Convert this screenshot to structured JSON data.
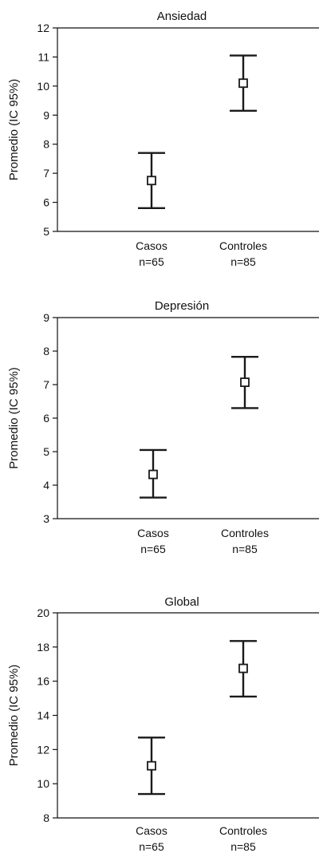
{
  "chart_data": [
    {
      "type": "errorbar",
      "title": "Ansiedad",
      "ylabel": "Promedio (IC 95%)",
      "ylim": [
        5,
        12
      ],
      "yticks": [
        5,
        6,
        7,
        8,
        9,
        10,
        11,
        12
      ],
      "categories": [
        {
          "name": "Casos",
          "n": "n=65"
        },
        {
          "name": "Controles",
          "n": "n=85"
        }
      ],
      "means": [
        6.75,
        10.1
      ],
      "ci_lower": [
        5.8,
        9.15
      ],
      "ci_upper": [
        7.7,
        11.05
      ]
    },
    {
      "type": "errorbar",
      "title": "Depresión",
      "ylabel": "Promedio (IC 95%)",
      "ylim": [
        3,
        9
      ],
      "yticks": [
        3,
        4,
        5,
        6,
        7,
        8,
        9
      ],
      "categories": [
        {
          "name": "Casos",
          "n": "n=65"
        },
        {
          "name": "Controles",
          "n": "n=85"
        }
      ],
      "means": [
        4.32,
        7.07
      ],
      "ci_lower": [
        3.63,
        6.3
      ],
      "ci_upper": [
        5.05,
        7.83
      ]
    },
    {
      "type": "errorbar",
      "title": "Global",
      "ylabel": "Promedio (IC 95%)",
      "ylim": [
        8,
        20
      ],
      "yticks": [
        8,
        10,
        12,
        14,
        16,
        18,
        20
      ],
      "categories": [
        {
          "name": "Casos",
          "n": "n=65"
        },
        {
          "name": "Controles",
          "n": "n=85"
        }
      ],
      "means": [
        11.05,
        16.75
      ],
      "ci_lower": [
        9.4,
        15.1
      ],
      "ci_upper": [
        12.7,
        18.35
      ]
    }
  ]
}
